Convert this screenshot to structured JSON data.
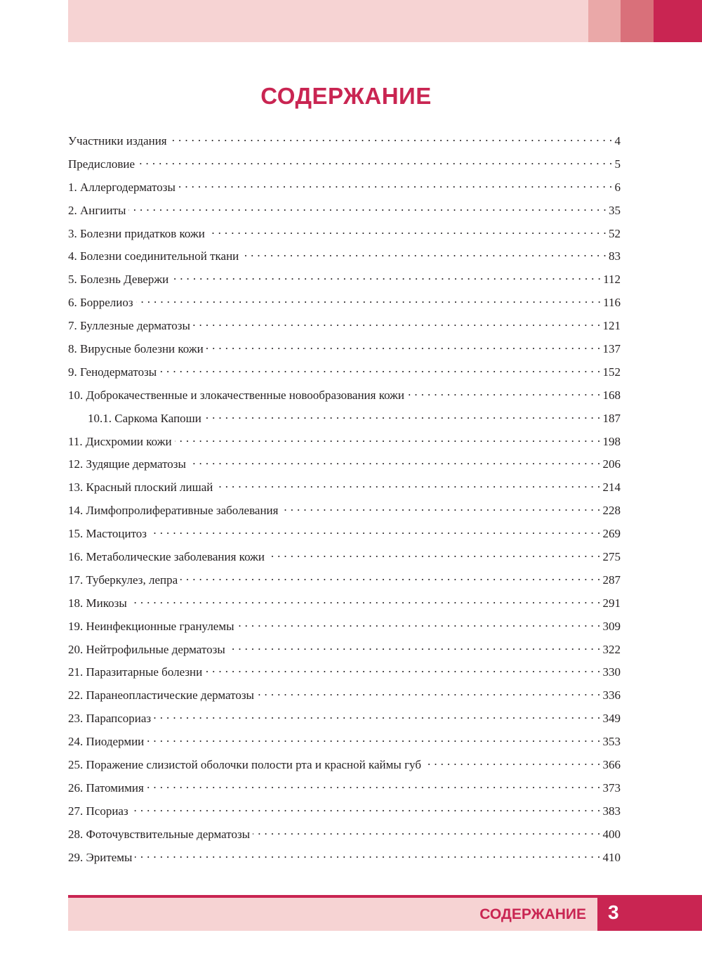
{
  "colors": {
    "accent": "#c92552",
    "light": "#f6d3d3",
    "mid1": "#eaa8a8",
    "mid2": "#d9707a"
  },
  "title": "СОДЕРЖАНИЕ",
  "toc": [
    {
      "label": "Участники издания",
      "page": "4"
    },
    {
      "label": "Предисловие",
      "page": "5"
    },
    {
      "label": "1. Аллергодерматозы",
      "page": "6"
    },
    {
      "label": "2. Ангииты",
      "page": "35"
    },
    {
      "label": "3. Болезни придатков кожи",
      "page": "52"
    },
    {
      "label": "4. Болезни соединительной ткани",
      "page": "83"
    },
    {
      "label": "5. Болезнь Девержи",
      "page": "112"
    },
    {
      "label": "6. Боррелиоз",
      "page": "116"
    },
    {
      "label": "7. Буллезные дерматозы",
      "page": "121"
    },
    {
      "label": "8. Вирусные болезни кожи",
      "page": "137"
    },
    {
      "label": "9. Генодерматозы",
      "page": "152"
    },
    {
      "label": "10. Доброкачественные и злокачественные новообразования кожи",
      "page": "168"
    },
    {
      "label": "10.1. Саркома Капоши",
      "page": "187",
      "sub": true
    },
    {
      "label": "11. Дисхромии кожи",
      "page": "198"
    },
    {
      "label": "12. Зудящие дерматозы",
      "page": "206"
    },
    {
      "label": "13. Красный плоский лишай",
      "page": "214"
    },
    {
      "label": "14. Лимфопролиферативные заболевания",
      "page": "228"
    },
    {
      "label": "15. Мастоцитоз",
      "page": "269"
    },
    {
      "label": "16. Метаболические заболевания кожи",
      "page": "275"
    },
    {
      "label": "17. Туберкулез, лепра",
      "page": "287"
    },
    {
      "label": "18. Микозы",
      "page": "291"
    },
    {
      "label": "19. Неинфекционные гранулемы",
      "page": "309"
    },
    {
      "label": "20. Нейтрофильные дерматозы",
      "page": "322"
    },
    {
      "label": "21. Паразитарные болезни",
      "page": "330"
    },
    {
      "label": "22. Паранеопластические дерматозы",
      "page": "336"
    },
    {
      "label": "23. Парапсориаз",
      "page": "349"
    },
    {
      "label": "24. Пиодермии",
      "page": "353"
    },
    {
      "label": "25. Поражение слизистой оболочки полости рта и красной каймы губ",
      "page": "366"
    },
    {
      "label": "26. Патомимия",
      "page": "373"
    },
    {
      "label": "27. Псориаз",
      "page": "383"
    },
    {
      "label": "28. Фоточувствительные дерматозы",
      "page": "400"
    },
    {
      "label": "29. Эритемы",
      "page": "410"
    }
  ],
  "footer": {
    "section": "СОДЕРЖАНИЕ",
    "page_number": "3"
  }
}
